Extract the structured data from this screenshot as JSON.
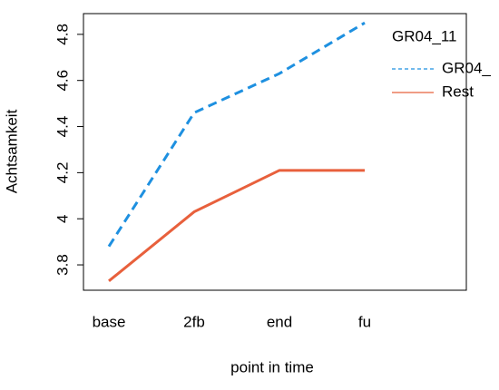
{
  "chart_data": {
    "type": "line",
    "x_label": "point in time",
    "y_label": "Achtsamkeit",
    "categories": [
      "base",
      "2fb",
      "end",
      "fu"
    ],
    "series": [
      {
        "name": "GR04_",
        "color": "#1e90e0",
        "dash": true,
        "values": [
          3.88,
          4.46,
          4.63,
          4.85
        ]
      },
      {
        "name": "Rest",
        "color": "#e8603c",
        "dash": false,
        "values": [
          3.73,
          4.03,
          4.21,
          4.21
        ]
      }
    ],
    "legend_title": "GR04_11",
    "ylim": [
      3.69,
      4.89
    ],
    "yticks": [
      3.8,
      4.0,
      4.2,
      4.4,
      4.6,
      4.8
    ]
  }
}
